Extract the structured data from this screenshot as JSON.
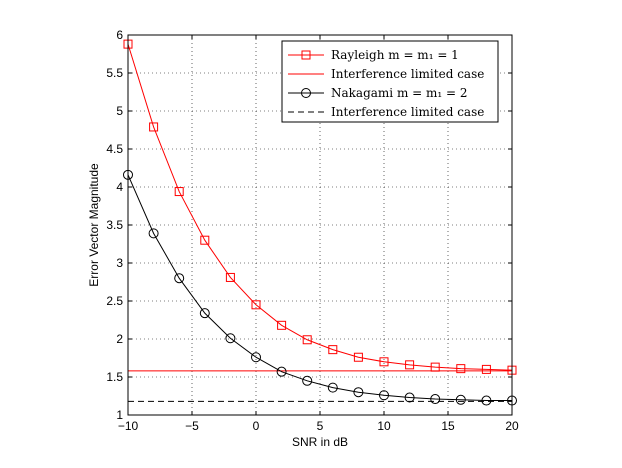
{
  "chart_data": {
    "type": "line",
    "xlabel": "SNR in dB",
    "ylabel": "Error Vector Magnitude",
    "xlim": [
      -10,
      20
    ],
    "ylim": [
      1,
      6
    ],
    "xticks": [
      -10,
      -5,
      0,
      5,
      10,
      15,
      20
    ],
    "xtick_labels": [
      "−10",
      "−5",
      "0",
      "5",
      "10",
      "15",
      "20"
    ],
    "yticks": [
      1,
      1.5,
      2,
      2.5,
      3,
      3.5,
      4,
      4.5,
      5,
      5.5,
      6
    ],
    "ytick_labels": [
      "1",
      "1.5",
      "2",
      "2.5",
      "3",
      "3.5",
      "4",
      "4.5",
      "5",
      "5.5",
      "6"
    ],
    "grid": true,
    "legend_position": "top-right",
    "series": [
      {
        "name": "Rayleigh m = m_I = 1",
        "legend_label": "Rayleigh m = m₁ = 1",
        "color": "#ff0000",
        "marker": "square",
        "linestyle": "solid",
        "x": [
          -10,
          -8,
          -6,
          -4,
          -2,
          0,
          2,
          4,
          6,
          8,
          10,
          12,
          14,
          16,
          18,
          20
        ],
        "y": [
          5.88,
          4.79,
          3.94,
          3.3,
          2.81,
          2.45,
          2.18,
          1.99,
          1.86,
          1.76,
          1.7,
          1.66,
          1.63,
          1.61,
          1.6,
          1.59
        ]
      },
      {
        "name": "Interference limited case",
        "legend_label": "Interference limited case",
        "color": "#ff0000",
        "marker": "none",
        "linestyle": "solid",
        "x": [
          -10,
          20
        ],
        "y": [
          1.58,
          1.58
        ]
      },
      {
        "name": "Nakagami m = m_I = 2",
        "legend_label": "Nakagami m = m₁ = 2",
        "color": "#000000",
        "marker": "circle",
        "linestyle": "solid",
        "x": [
          -10,
          -8,
          -6,
          -4,
          -2,
          0,
          2,
          4,
          6,
          8,
          10,
          12,
          14,
          16,
          18,
          20
        ],
        "y": [
          4.16,
          3.39,
          2.8,
          2.34,
          2.01,
          1.76,
          1.57,
          1.45,
          1.36,
          1.3,
          1.26,
          1.23,
          1.21,
          1.2,
          1.19,
          1.19
        ]
      },
      {
        "name": "Interference limited case (Nakagami)",
        "legend_label": "Interference limited case",
        "color": "#000000",
        "marker": "none",
        "linestyle": "dashed",
        "x": [
          -10,
          20
        ],
        "y": [
          1.18,
          1.18
        ]
      }
    ]
  }
}
